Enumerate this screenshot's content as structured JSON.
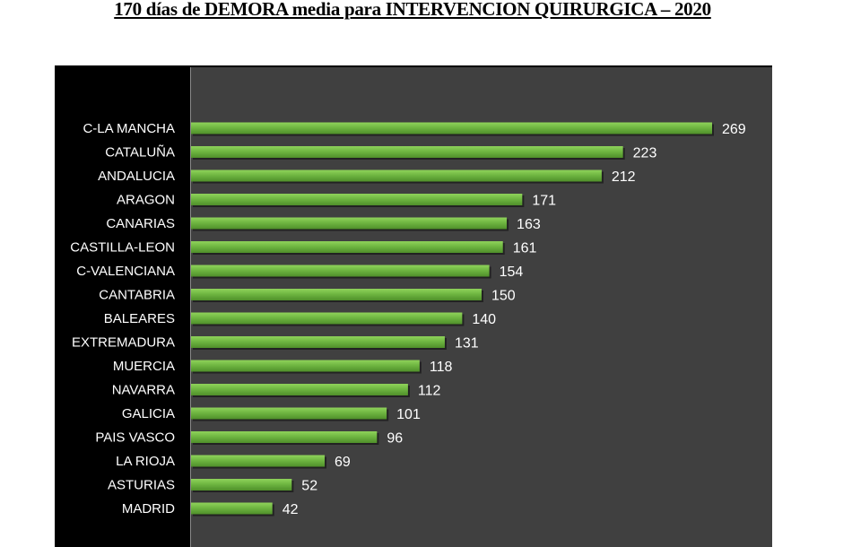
{
  "chart_data": {
    "type": "bar",
    "orientation": "horizontal",
    "title": "170 días de DEMORA media para INTERVENCION QUIRURGICA – 2020",
    "categories": [
      "C-LA MANCHA",
      "CATALUÑA",
      "ANDALUCIA",
      "ARAGON",
      "CANARIAS",
      "CASTILLA-LEON",
      "C-VALENCIANA",
      "CANTABRIA",
      "BALEARES",
      "EXTREMADURA",
      "MUERCIA",
      "NAVARRA",
      "GALICIA",
      "PAIS VASCO",
      "LA RIOJA",
      "ASTURIAS",
      "MADRID"
    ],
    "values": [
      269,
      223,
      212,
      171,
      163,
      161,
      154,
      150,
      140,
      131,
      118,
      112,
      101,
      96,
      69,
      52,
      42
    ],
    "xlabel": "",
    "ylabel": "",
    "xlim": [
      0,
      300
    ],
    "grid": false,
    "legend": "none",
    "colors": {
      "bar": "#6cb33f",
      "plot_bg": "#404040",
      "label_bg": "#000000",
      "text": "#ffffff"
    }
  }
}
